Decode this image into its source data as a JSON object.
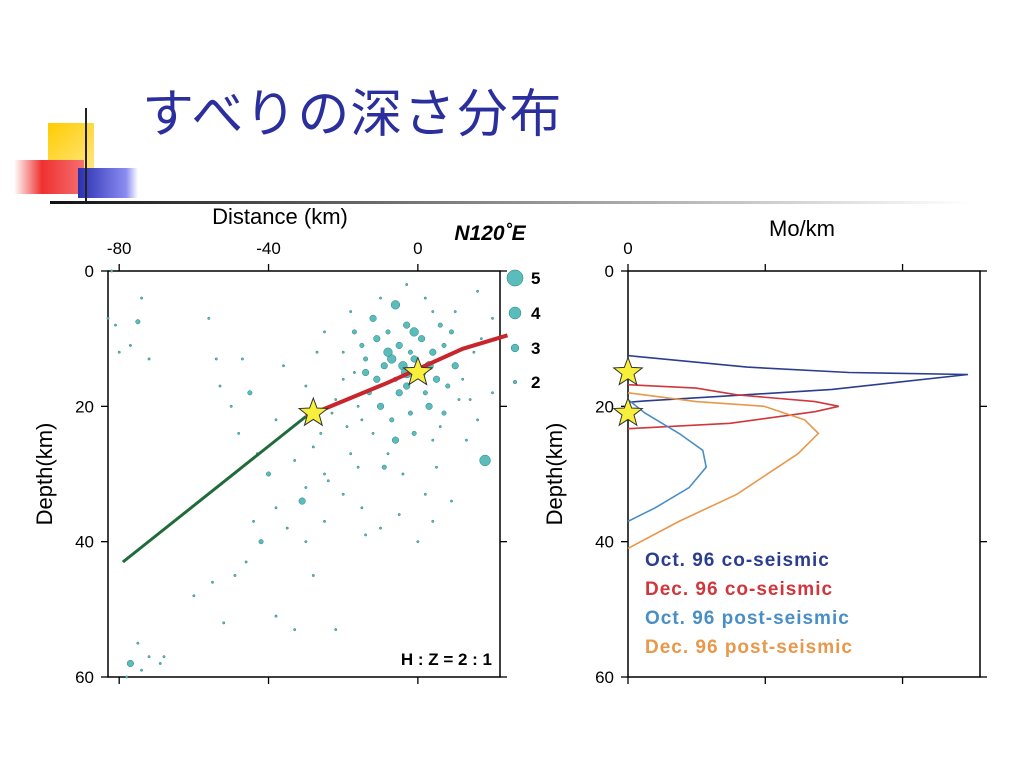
{
  "slide": {
    "title": "すべりの深さ分布"
  },
  "colors": {
    "title": "#2b2f9e",
    "quake": "#5bbcbc",
    "fault_shallow": "#c8262c",
    "fault_deep": "#1f6b3a",
    "star": "#f7ef3a",
    "oct_co": "#2b3d8f",
    "dec_co": "#d0363c",
    "oct_post": "#4a8ec6",
    "dec_post": "#e8984a"
  },
  "chart_data": [
    {
      "type": "scatter",
      "xlabel": "Distance (km)",
      "ylabel": "Depth(km)",
      "azimuth_label": "N120˚E",
      "scale_label": "H : Z = 2 : 1",
      "xlim": [
        -83,
        22
      ],
      "ylim": [
        0,
        60
      ],
      "x_ticks": [
        -80,
        -40,
        0
      ],
      "y_ticks": [
        0,
        20,
        40,
        60
      ],
      "magnitude_legend": [
        {
          "label": "5",
          "magnitude": 5
        },
        {
          "label": "4",
          "magnitude": 4
        },
        {
          "label": "3",
          "magnitude": 3
        },
        {
          "label": "2",
          "magnitude": 2
        }
      ],
      "fault_segments": [
        {
          "name": "shallow",
          "points": [
            [
              -30,
              21.5
            ],
            [
              -8,
              16.5
            ],
            [
              12,
              11.5
            ],
            [
              24,
              9.5
            ]
          ]
        },
        {
          "name": "deep",
          "points": [
            [
              -79,
              43
            ],
            [
              -30,
              21.5
            ]
          ]
        }
      ],
      "hypocenters": [
        {
          "x": 0,
          "depth": 15
        },
        {
          "x": -28,
          "depth": 21
        }
      ],
      "earthquakes": [
        [
          -82,
          0,
          2
        ],
        [
          -83,
          7,
          2
        ],
        [
          -81,
          8,
          2
        ],
        [
          -75,
          7.5,
          2.5
        ],
        [
          -74,
          4,
          2
        ],
        [
          -77,
          11,
          2
        ],
        [
          -80,
          12,
          2
        ],
        [
          -72,
          13,
          2
        ],
        [
          -56,
          7,
          2
        ],
        [
          -54,
          13,
          2
        ],
        [
          -47,
          13,
          2
        ],
        [
          -53,
          17,
          2
        ],
        [
          -50,
          20,
          2
        ],
        [
          -45,
          18,
          2.5
        ],
        [
          -38,
          22,
          2
        ],
        [
          -48,
          24,
          2
        ],
        [
          -43,
          27,
          2
        ],
        [
          -40,
          30,
          2.5
        ],
        [
          -33,
          28,
          2
        ],
        [
          -30,
          32,
          2
        ],
        [
          -28,
          26,
          2
        ],
        [
          -31,
          34,
          3
        ],
        [
          -25,
          30,
          2
        ],
        [
          -38,
          35,
          2
        ],
        [
          -44,
          37,
          2
        ],
        [
          -35,
          38,
          2
        ],
        [
          -30,
          40,
          2
        ],
        [
          -25,
          37,
          2
        ],
        [
          -20,
          33,
          2
        ],
        [
          -15,
          35,
          2
        ],
        [
          -10,
          38,
          2
        ],
        [
          -5,
          36,
          2
        ],
        [
          0,
          40,
          2
        ],
        [
          4,
          37,
          2
        ],
        [
          -42,
          40,
          2.5
        ],
        [
          -46,
          43,
          2
        ],
        [
          -49,
          45,
          2
        ],
        [
          -55,
          46,
          2
        ],
        [
          -60,
          48,
          2
        ],
        [
          -52,
          52,
          2
        ],
        [
          -38,
          51,
          2
        ],
        [
          -33,
          53,
          2
        ],
        [
          -22,
          53,
          2
        ],
        [
          -75,
          55,
          2
        ],
        [
          -72,
          57,
          2
        ],
        [
          -69,
          58,
          2
        ],
        [
          -77,
          58,
          3
        ],
        [
          -74,
          59,
          2
        ],
        [
          -78,
          60,
          2
        ],
        [
          -68,
          57,
          2
        ],
        [
          -17,
          15,
          2
        ],
        [
          -14,
          13,
          2.5
        ],
        [
          -11,
          10,
          3
        ],
        [
          -8,
          9,
          2.5
        ],
        [
          -5,
          11,
          3
        ],
        [
          -2,
          12,
          2.5
        ],
        [
          1,
          10,
          3
        ],
        [
          4,
          12,
          3
        ],
        [
          7,
          11,
          2.5
        ],
        [
          10,
          14,
          3
        ],
        [
          -9,
          14,
          3
        ],
        [
          -6,
          16,
          2.5
        ],
        [
          -3,
          17,
          3
        ],
        [
          2,
          18,
          2.5
        ],
        [
          5,
          16,
          3
        ],
        [
          8,
          17,
          2.5
        ],
        [
          -13,
          18,
          2.5
        ],
        [
          -16,
          20,
          2
        ],
        [
          -10,
          20,
          3
        ],
        [
          -7,
          22,
          2.5
        ],
        [
          -2,
          21,
          2.5
        ],
        [
          3,
          20,
          3
        ],
        [
          7,
          21,
          2.5
        ],
        [
          11,
          19,
          2
        ],
        [
          -12,
          24,
          2
        ],
        [
          -6,
          25,
          3
        ],
        [
          -1,
          24,
          2.5
        ],
        [
          4,
          25,
          2
        ],
        [
          -19,
          23,
          2
        ],
        [
          -22,
          19,
          2
        ],
        [
          -20,
          16,
          2
        ],
        [
          -15,
          11,
          2.5
        ],
        [
          -12,
          7,
          3
        ],
        [
          -6,
          5,
          3.5
        ],
        [
          2,
          4,
          2
        ],
        [
          4,
          6,
          2
        ],
        [
          -3,
          8,
          3
        ],
        [
          -7,
          13,
          3.5
        ],
        [
          -14,
          15,
          3
        ],
        [
          -4,
          14,
          3.5
        ],
        [
          -3,
          15,
          4
        ],
        [
          3,
          14,
          3.5
        ],
        [
          -8,
          12,
          3.5
        ],
        [
          -1,
          9,
          3.5
        ],
        [
          6,
          8,
          2.5
        ],
        [
          9,
          9,
          2.5
        ],
        [
          12,
          16,
          2
        ],
        [
          14,
          19,
          2
        ],
        [
          16,
          22,
          2
        ],
        [
          20,
          18,
          2
        ],
        [
          18,
          28,
          4
        ],
        [
          13,
          25,
          2
        ],
        [
          -18,
          27,
          2
        ],
        [
          -26,
          24,
          2
        ],
        [
          -23,
          21,
          2
        ],
        [
          -16,
          29,
          2
        ],
        [
          -4,
          30,
          2
        ],
        [
          -8,
          27,
          2
        ],
        [
          5,
          29,
          2
        ],
        [
          9,
          34,
          2
        ],
        [
          -36,
          14,
          2
        ],
        [
          -27,
          12,
          2
        ],
        [
          -25,
          9,
          2
        ],
        [
          -18,
          6,
          2
        ],
        [
          -10,
          4,
          2
        ],
        [
          -3,
          2,
          2
        ],
        [
          10,
          6,
          2
        ],
        [
          16,
          3,
          2
        ],
        [
          20,
          7,
          2
        ],
        [
          -1,
          13,
          3
        ],
        [
          1,
          15,
          3.5
        ],
        [
          -5,
          18,
          3
        ],
        [
          -11,
          16,
          3
        ],
        [
          -15,
          22,
          2
        ],
        [
          6,
          23,
          2
        ],
        [
          -20,
          12,
          2
        ],
        [
          -17,
          9,
          2.5
        ],
        [
          15,
          12,
          2
        ],
        [
          17,
          10,
          2
        ],
        [
          -30,
          17,
          2
        ],
        [
          -9,
          29,
          2.5
        ],
        [
          -24,
          31,
          2
        ],
        [
          2,
          33,
          2
        ],
        [
          -14,
          39,
          2
        ],
        [
          -28,
          45,
          2
        ]
      ]
    },
    {
      "type": "line",
      "xlabel": "Mo/km",
      "ylabel": "Depth(km)",
      "x_ticks": [
        0
      ],
      "y_ticks": [
        0,
        20,
        40,
        60
      ],
      "xlim": [
        0,
        1
      ],
      "ylim": [
        0,
        60
      ],
      "hypocenters": [
        {
          "x": 0,
          "depth": 15
        },
        {
          "x": 0,
          "depth": 21
        }
      ],
      "series": [
        {
          "name": "Oct. 96 co-seismic",
          "color_key": "oct_co",
          "points": [
            [
              0,
              12.5
            ],
            [
              0.35,
              14.2
            ],
            [
              0.65,
              15
            ],
            [
              1.0,
              15.3
            ],
            [
              0.6,
              17.5
            ],
            [
              0.28,
              18.5
            ],
            [
              0.05,
              19.2
            ],
            [
              0,
              19.4
            ]
          ]
        },
        {
          "name": "Dec. 96 co-seismic",
          "color_key": "dec_co",
          "points": [
            [
              0,
              16.8
            ],
            [
              0.2,
              17.3
            ],
            [
              0.32,
              18.3
            ],
            [
              0.55,
              19.3
            ],
            [
              0.62,
              20
            ],
            [
              0.55,
              20.8
            ],
            [
              0.3,
              22.5
            ],
            [
              0,
              23.3
            ]
          ]
        },
        {
          "name": "Oct. 96 post-seismic",
          "color_key": "oct_post",
          "points": [
            [
              0,
              19
            ],
            [
              0.05,
              21
            ],
            [
              0.15,
              24
            ],
            [
              0.22,
              26.5
            ],
            [
              0.23,
              29
            ],
            [
              0.18,
              32
            ],
            [
              0.08,
              35
            ],
            [
              0,
              37
            ]
          ]
        },
        {
          "name": "Dec. 96 post-seismic",
          "color_key": "dec_post",
          "points": [
            [
              0,
              18
            ],
            [
              0.2,
              19.3
            ],
            [
              0.4,
              20
            ],
            [
              0.52,
              22
            ],
            [
              0.56,
              24
            ],
            [
              0.5,
              27
            ],
            [
              0.32,
              33
            ],
            [
              0.15,
              37
            ],
            [
              0,
              41
            ]
          ]
        }
      ]
    }
  ]
}
